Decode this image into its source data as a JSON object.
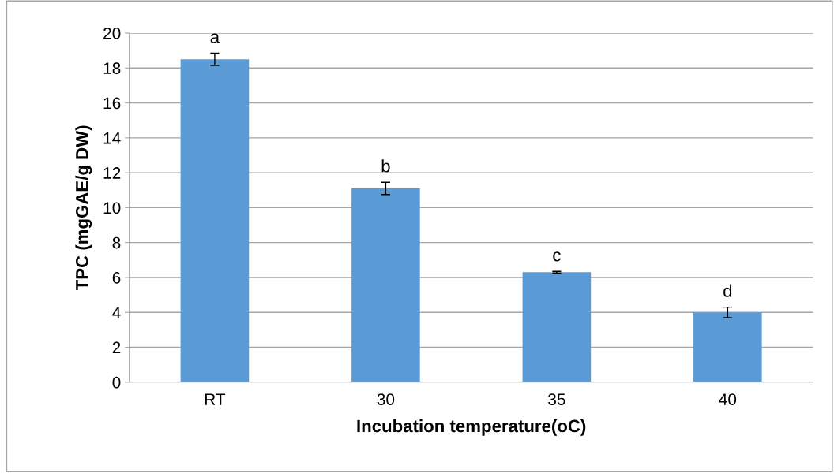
{
  "chart_data": {
    "type": "bar",
    "xlabel": "Incubation temperature(oC)",
    "ylabel": "TPC (mgGAE/g DW)",
    "categories": [
      "RT",
      "30",
      "35",
      "40"
    ],
    "values": [
      18.5,
      11.1,
      6.3,
      4.0
    ],
    "errors": [
      0.35,
      0.35,
      0.05,
      0.3
    ],
    "color": "#5b9bd5",
    "ylim": [
      0,
      20
    ],
    "yticks": [
      0,
      2,
      4,
      6,
      8,
      10,
      12,
      14,
      16,
      18,
      20
    ],
    "grid": "y",
    "annotations": [
      "a",
      "b",
      "c",
      "d"
    ]
  }
}
